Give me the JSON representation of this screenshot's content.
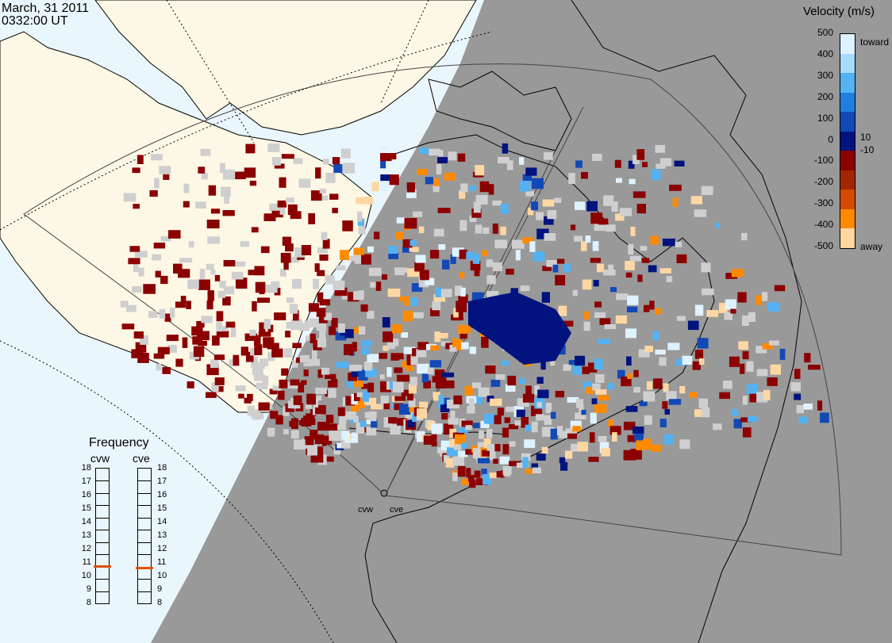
{
  "header": {
    "date": "March, 31 2011",
    "time": "0332:00 UT"
  },
  "velocity_scale": {
    "title": "Velocity (m/s)",
    "ticks": [
      "500",
      "400",
      "300",
      "200",
      "100",
      "0",
      "-100",
      "-200",
      "-300",
      "-400",
      "-500"
    ],
    "toward_label": "toward",
    "away_label": "away",
    "inner_top": "10",
    "inner_bottom": "-10",
    "colors": [
      "#dff2ff",
      "#a6dbfa",
      "#54b2f2",
      "#1f7fe0",
      "#1249b6",
      "#00137f",
      "#8b0000",
      "#a22700",
      "#d44a00",
      "#ff8a00",
      "#ffd7a3"
    ]
  },
  "frequency_panel": {
    "title": "Frequency",
    "radars": [
      {
        "name": "cvw",
        "value": 10.8
      },
      {
        "name": "cve",
        "value": 10.7
      }
    ],
    "scale": [
      "18",
      "17",
      "16",
      "15",
      "14",
      "13",
      "12",
      "11",
      "10",
      "9",
      "8"
    ]
  },
  "map_labels": {
    "radar_west": "cvw",
    "radar_east": "cve"
  },
  "colors": {
    "ocean": "#eaf6fd",
    "land": "#fdf8e5",
    "night": "#999999",
    "ground_scatter": "#cfcfcf"
  }
}
